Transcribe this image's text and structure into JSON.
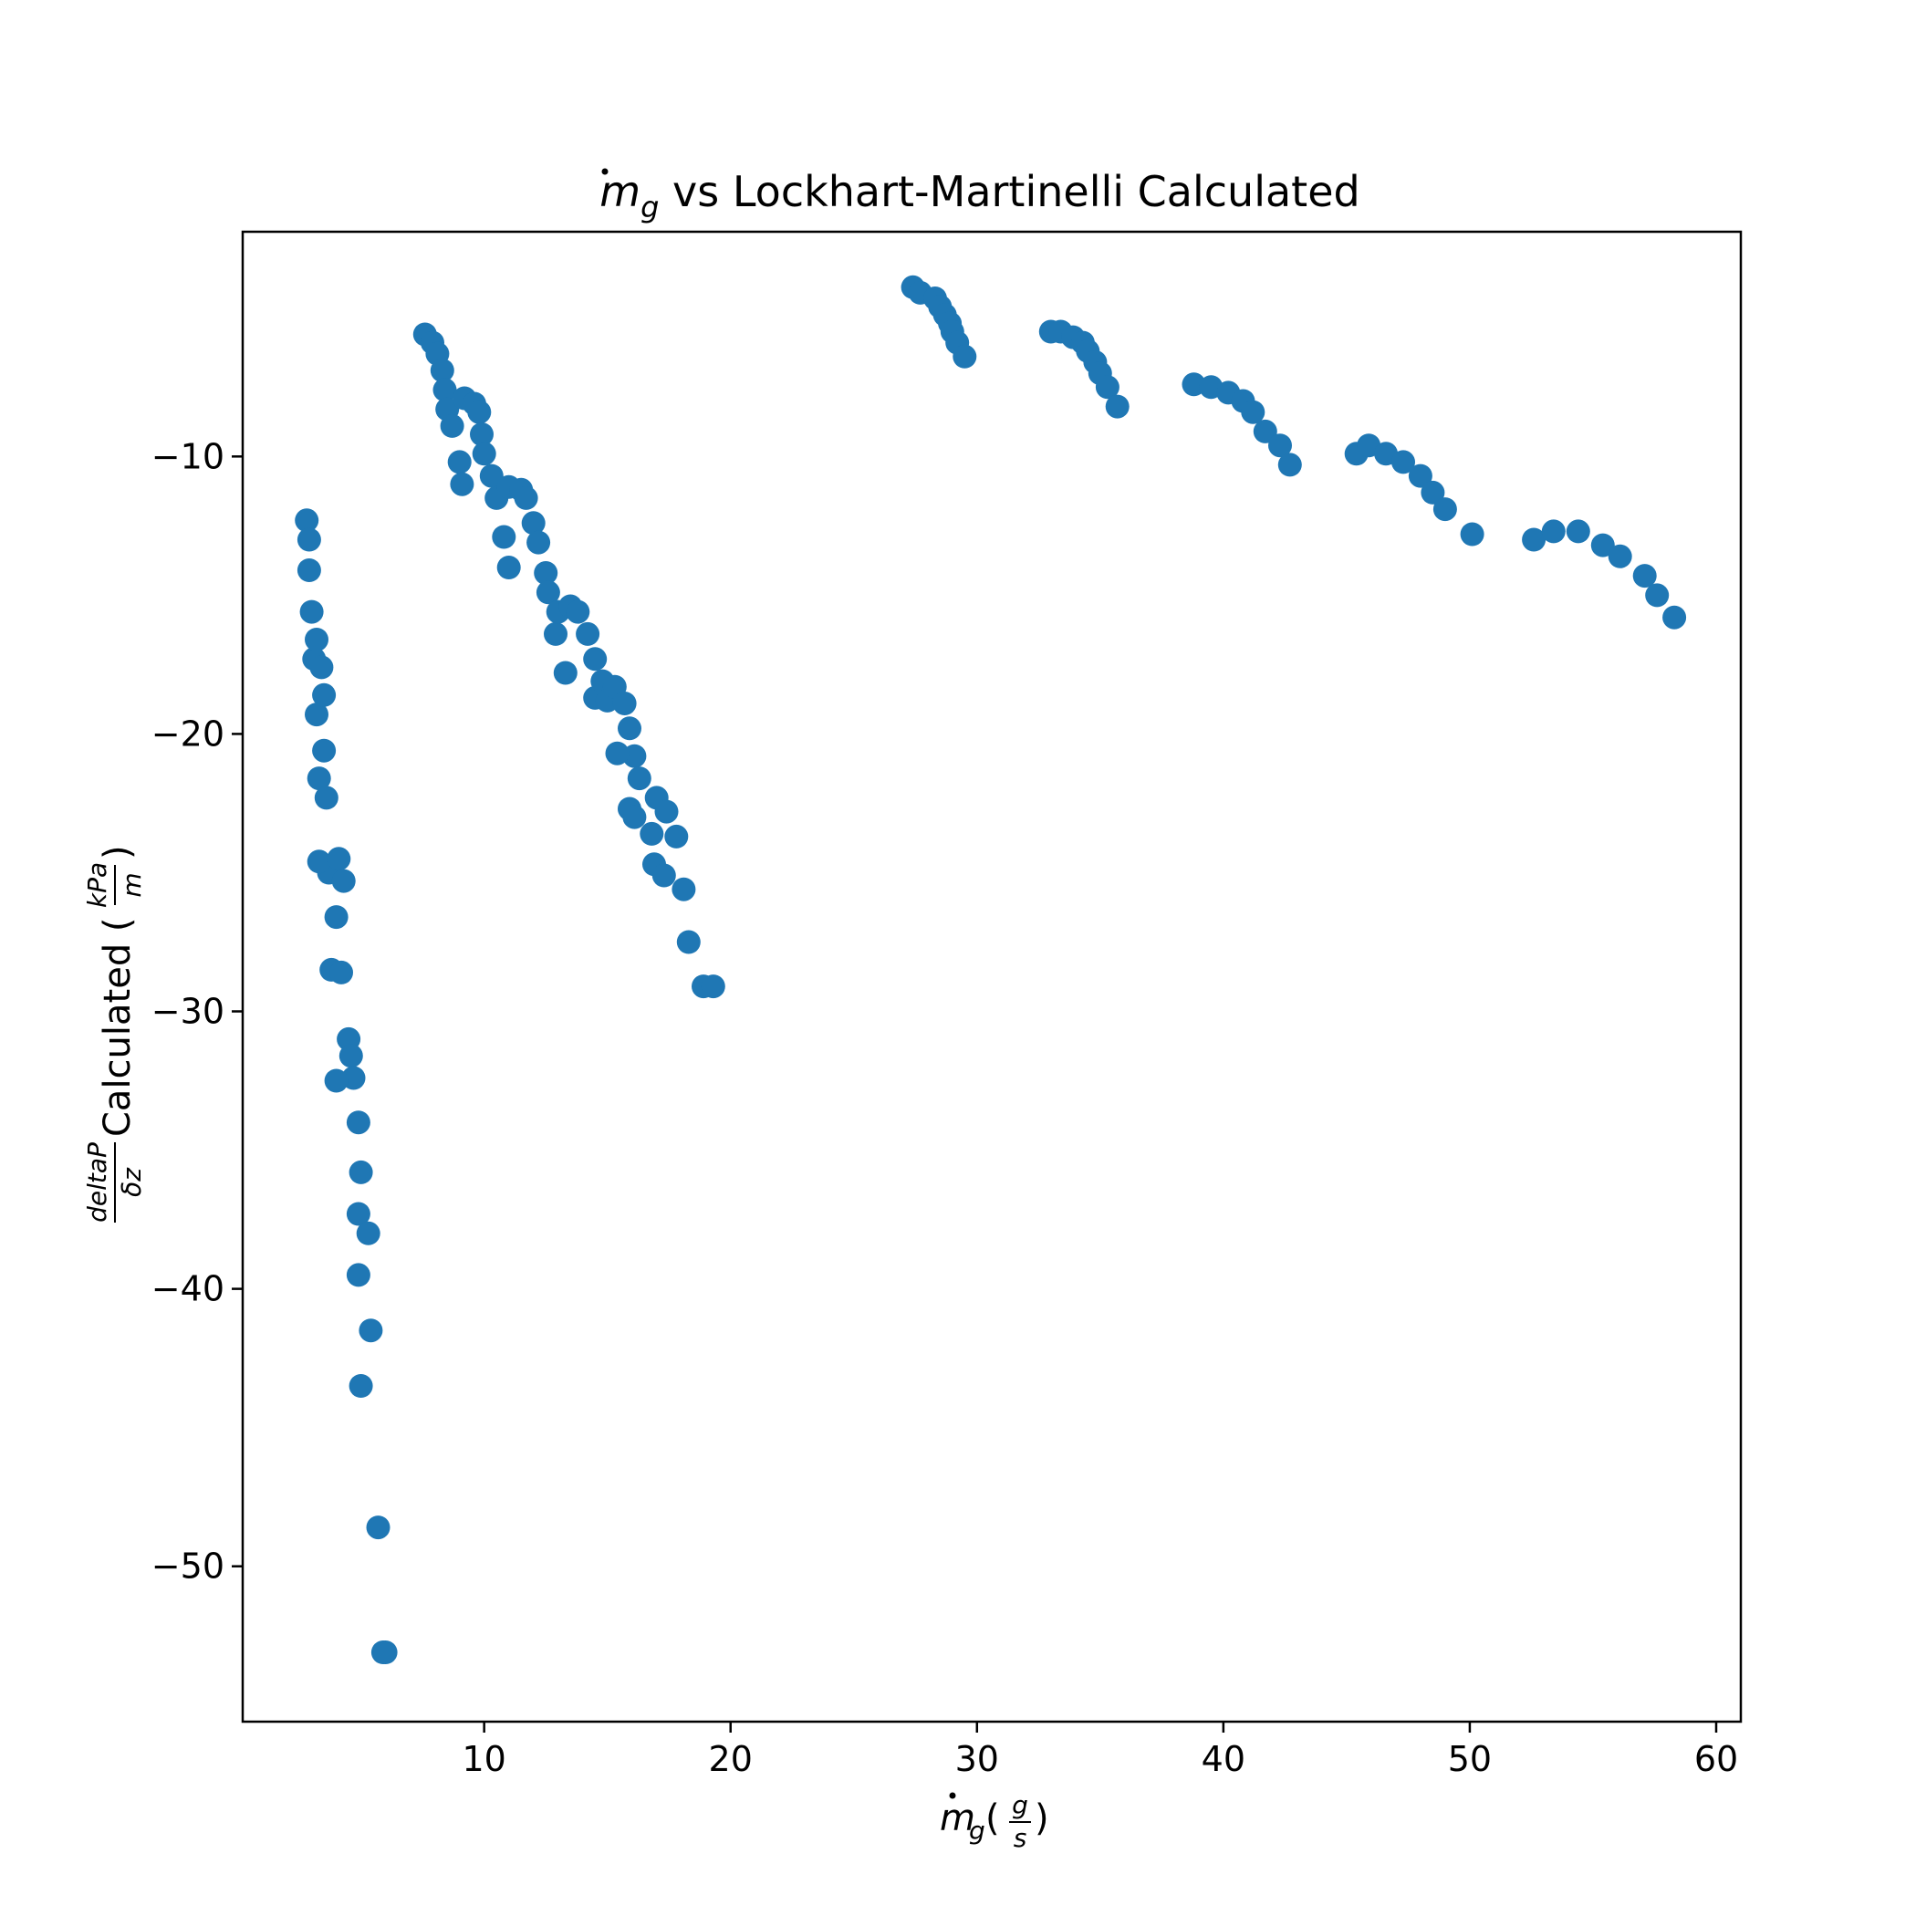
{
  "chart_data": {
    "type": "scatter",
    "title": {
      "var": "m",
      "sub": "g",
      "text": " vs Lockhart-Martinelli Calculated"
    },
    "xlabel": {
      "var": "m",
      "sub": "g",
      "open": "(",
      "num": "g",
      "den": "s",
      "close": ")"
    },
    "ylabel": {
      "num": "deltaP",
      "den": "δz",
      "text": " Calculated (",
      "unit_num": "kPa",
      "unit_den": "m",
      "close": ")"
    },
    "xlim": [
      0.2,
      61
    ],
    "ylim": [
      -55.6,
      -1.9
    ],
    "xticks": [
      10,
      20,
      30,
      40,
      50,
      60
    ],
    "xtick_labels": [
      "10",
      "20",
      "30",
      "40",
      "50",
      "60"
    ],
    "yticks": [
      -10,
      -20,
      -30,
      -40,
      -50
    ],
    "ytick_labels": [
      "−10",
      "−20",
      "−30",
      "−40",
      "−50"
    ],
    "grid": false,
    "marker_color": "#1f77b4",
    "series": [
      {
        "x": [
          2.8,
          2.9,
          2.9,
          3.0,
          3.1,
          3.2,
          3.2,
          3.3,
          3.4,
          3.5,
          3.5,
          3.6,
          3.7,
          3.3,
          3.8,
          4.1,
          4.3,
          4.0,
          4.2,
          4.5,
          4.6,
          4.7,
          4.0,
          4.9,
          5.0,
          4.9,
          5.3,
          4.9,
          5.4,
          5.0,
          5.7,
          5.9,
          6.0
        ],
        "y": [
          -12.3,
          -13.0,
          -14.1,
          -15.6,
          -17.3,
          -16.6,
          -19.3,
          -21.6,
          -17.6,
          -18.6,
          -20.6,
          -22.3,
          -25.0,
          -24.6,
          -28.5,
          -24.5,
          -25.3,
          -26.6,
          -28.6,
          -31.0,
          -31.6,
          -32.4,
          -32.5,
          -34.0,
          -35.8,
          -37.3,
          -38.0,
          -39.5,
          -41.5,
          -43.5,
          -48.6,
          -53.1,
          -53.1
        ]
      },
      {
        "x": [
          7.6,
          7.9,
          8.1,
          8.3,
          8.4,
          8.5,
          8.7,
          9.2,
          9.6,
          9.8,
          9.9,
          10.0,
          9.0,
          9.1,
          10.3,
          10.5,
          11.0,
          11.5,
          11.7,
          10.8,
          11.0,
          12.0,
          12.2,
          12.5,
          12.6,
          12.9,
          13.0,
          13.5,
          13.8,
          14.2,
          14.5,
          13.3,
          14.5,
          14.8,
          15.0,
          15.3,
          15.7,
          15.9,
          16.1,
          16.3,
          15.4,
          15.9,
          16.1,
          16.8,
          17.0,
          17.4,
          17.8,
          16.9,
          17.3,
          18.1,
          18.3,
          18.9,
          19.3
        ],
        "y": [
          -5.6,
          -5.9,
          -6.3,
          -6.9,
          -7.6,
          -8.3,
          -8.9,
          -7.9,
          -8.1,
          -8.4,
          -9.2,
          -9.9,
          -10.2,
          -11.0,
          -10.7,
          -11.5,
          -11.1,
          -11.2,
          -11.5,
          -12.9,
          -14.0,
          -12.4,
          -13.1,
          -14.2,
          -14.9,
          -16.4,
          -15.6,
          -15.4,
          -15.6,
          -16.4,
          -17.3,
          -17.8,
          -18.7,
          -18.1,
          -18.8,
          -18.3,
          -18.9,
          -19.8,
          -20.8,
          -21.6,
          -20.7,
          -22.7,
          -23.0,
          -23.6,
          -22.3,
          -22.8,
          -23.7,
          -24.7,
          -25.1,
          -25.6,
          -27.5,
          -29.1,
          -29.1
        ]
      },
      {
        "x": [
          27.4,
          27.7,
          28.3,
          28.5,
          28.7,
          28.9,
          29.0,
          29.2,
          29.5
        ],
        "y": [
          -3.9,
          -4.1,
          -4.3,
          -4.6,
          -4.9,
          -5.2,
          -5.5,
          -5.9,
          -6.4
        ]
      },
      {
        "x": [
          33.0,
          33.4,
          33.9,
          34.3,
          34.5,
          34.8,
          35.0,
          35.3,
          35.7
        ],
        "y": [
          -5.5,
          -5.5,
          -5.7,
          -5.9,
          -6.2,
          -6.6,
          -7.0,
          -7.5,
          -8.2
        ]
      },
      {
        "x": [
          38.8,
          39.5,
          40.2,
          40.8,
          41.2,
          41.7,
          42.3,
          42.7
        ],
        "y": [
          -7.4,
          -7.5,
          -7.7,
          -8.0,
          -8.4,
          -9.1,
          -9.6,
          -10.3
        ]
      },
      {
        "x": [
          45.4,
          45.9,
          46.6,
          47.3,
          48.0,
          48.5,
          49.0,
          50.1
        ],
        "y": [
          -9.9,
          -9.6,
          -9.9,
          -10.2,
          -10.7,
          -11.3,
          -11.9,
          -12.8
        ]
      },
      {
        "x": [
          52.6,
          53.4,
          54.4,
          55.4,
          56.1,
          57.1,
          57.6,
          58.3
        ],
        "y": [
          -13.0,
          -12.7,
          -12.7,
          -13.2,
          -13.6,
          -14.3,
          -15.0,
          -15.8
        ]
      }
    ]
  }
}
